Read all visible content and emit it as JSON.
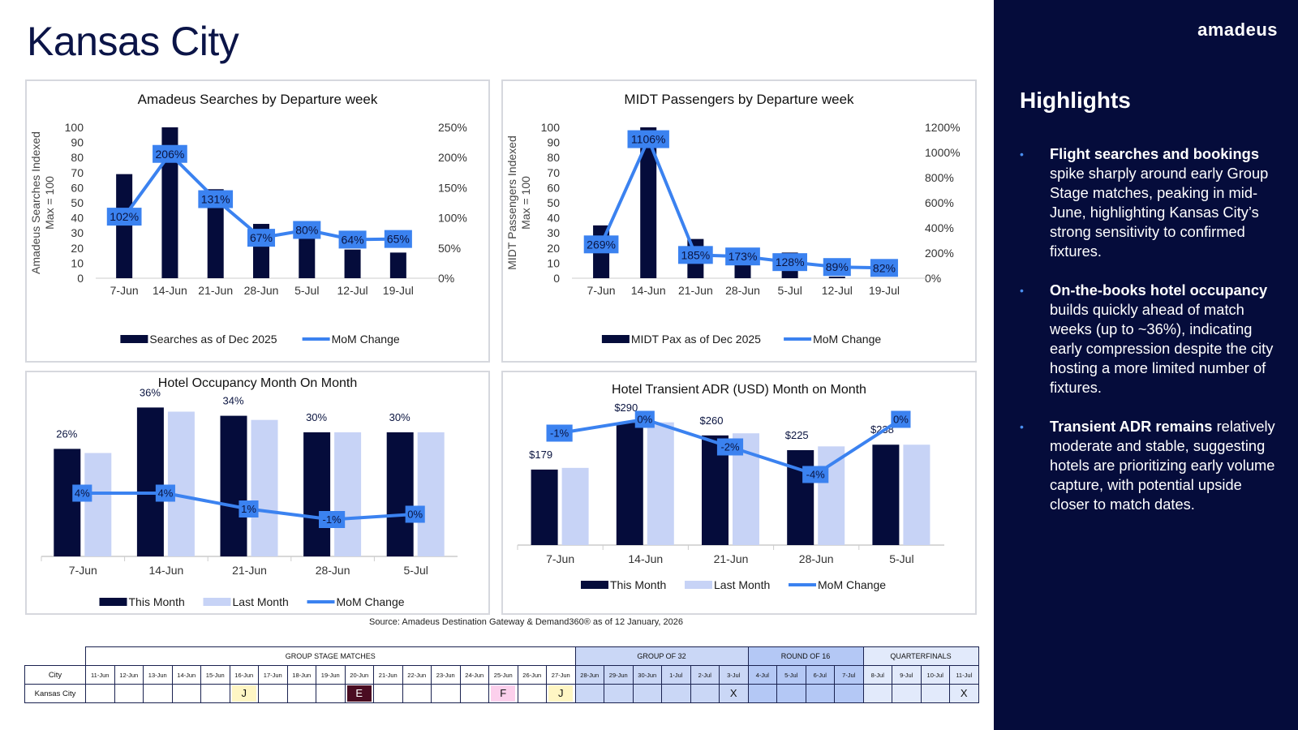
{
  "page": {
    "title": "Kansas City",
    "source": "Source: Amadeus Destination Gateway & Demand360® as of 12 January, 2026"
  },
  "sidebar": {
    "logo": "amadeus",
    "title": "Highlights",
    "items": [
      {
        "bold": "Flight searches and bookings",
        "text": " spike sharply around early Group Stage matches, peaking in mid-June, highlighting Kansas City’s strong sensitivity to confirmed fixtures."
      },
      {
        "bold": "On-the-books hotel occupancy",
        "text": " builds quickly ahead of match weeks (up to ~36%), indicating early compression despite the city hosting a more limited number of fixtures."
      },
      {
        "bold": "Transient ADR remains",
        "text": " relatively moderate and stable, suggesting hotels are prioritizing early volume capture, with potential upside closer to match dates."
      }
    ]
  },
  "colors": {
    "navy": "#050c3b",
    "accent": "#3b82f0",
    "light": "#c7d3f6"
  },
  "chart_data": [
    {
      "type": "bar",
      "title": "Amadeus Searches by Departure week",
      "ylabel": "Amadeus Searches Indexed Max = 100",
      "categories": [
        "7-Jun",
        "14-Jun",
        "21-Jun",
        "28-Jun",
        "5-Jul",
        "12-Jul",
        "19-Jul"
      ],
      "ylim": [
        0,
        100
      ],
      "yticks": [
        "0",
        "10",
        "20",
        "30",
        "40",
        "50",
        "60",
        "70",
        "80",
        "90",
        "100"
      ],
      "y2lim": [
        0,
        250
      ],
      "y2ticks": [
        "0%",
        "50%",
        "100%",
        "150%",
        "200%",
        "250%"
      ],
      "series": [
        {
          "name": "Searches as of Dec 2025",
          "kind": "bar",
          "values": [
            69,
            100,
            59,
            36,
            29,
            19,
            17
          ]
        },
        {
          "name": "MoM Change",
          "kind": "line",
          "axis": "right",
          "values": [
            102,
            206,
            131,
            67,
            80,
            64,
            65
          ],
          "labels": [
            "102%",
            "206%",
            "131%",
            "67%",
            "80%",
            "64%",
            "65%"
          ]
        }
      ]
    },
    {
      "type": "bar",
      "title": "MIDT Passengers by Departure week",
      "ylabel": "MIDT Passengers Indexed Max = 100",
      "categories": [
        "7-Jun",
        "14-Jun",
        "21-Jun",
        "28-Jun",
        "5-Jul",
        "12-Jul",
        "19-Jul"
      ],
      "ylim": [
        0,
        100
      ],
      "yticks": [
        "0",
        "10",
        "20",
        "30",
        "40",
        "50",
        "60",
        "70",
        "80",
        "90",
        "100"
      ],
      "y2lim": [
        0,
        1200
      ],
      "y2ticks": [
        "0%",
        "200%",
        "400%",
        "600%",
        "800%",
        "1000%",
        "1200%"
      ],
      "series": [
        {
          "name": "MIDT Pax as of Dec 2025",
          "kind": "bar",
          "values": [
            35,
            100,
            26,
            15,
            17,
            1,
            0
          ]
        },
        {
          "name": "MoM Change",
          "kind": "line",
          "axis": "right",
          "values": [
            269,
            1106,
            185,
            173,
            128,
            89,
            82
          ],
          "labels": [
            "269%",
            "1106%",
            "185%",
            "173%",
            "128%",
            "89%",
            "82%"
          ]
        }
      ]
    },
    {
      "type": "bar",
      "title": "Hotel Occupancy Month On Month",
      "categories": [
        "7-Jun",
        "14-Jun",
        "21-Jun",
        "28-Jun",
        "5-Jul"
      ],
      "series": [
        {
          "name": "This Month",
          "kind": "bar",
          "values": [
            26,
            36,
            34,
            30,
            30
          ],
          "labels": [
            "26%",
            "36%",
            "34%",
            "30%",
            "30%"
          ]
        },
        {
          "name": "Last Month",
          "kind": "bar",
          "values": [
            25,
            35,
            33,
            30,
            30
          ]
        },
        {
          "name": "MoM Change",
          "kind": "line",
          "values": [
            4,
            4,
            1,
            -1,
            0
          ],
          "labels": [
            "4%",
            "4%",
            "1%",
            "-1%",
            "0%"
          ]
        }
      ]
    },
    {
      "type": "bar",
      "title": "Hotel Transient ADR (USD) Month on Month",
      "categories": [
        "7-Jun",
        "14-Jun",
        "21-Jun",
        "28-Jun",
        "5-Jul"
      ],
      "series": [
        {
          "name": "This Month",
          "kind": "bar",
          "values": [
            179,
            290,
            260,
            225,
            238
          ],
          "labels": [
            "$179",
            "$290",
            "$260",
            "$225",
            "$238"
          ]
        },
        {
          "name": "Last Month",
          "kind": "bar",
          "values": [
            183,
            291,
            265,
            234,
            238
          ]
        },
        {
          "name": "MoM Change",
          "kind": "line",
          "values": [
            -1,
            0,
            -2,
            -4,
            0
          ],
          "labels": [
            "-1%",
            "0%",
            "-2%",
            "-4%",
            "0%"
          ]
        }
      ]
    }
  ],
  "schedule": {
    "phases": [
      {
        "label": "GROUP STAGE MATCHES",
        "span": 17,
        "color": "#ffffff"
      },
      {
        "label": "GROUP OF 32",
        "span": 6,
        "color": "#cad7f6"
      },
      {
        "label": "ROUND OF 16",
        "span": 4,
        "color": "#b4c8f5"
      },
      {
        "label": "QUARTERFINALS",
        "span": 4,
        "color": "#e2eafb"
      }
    ],
    "city_header": "City",
    "dates": [
      "11-Jun",
      "12-Jun",
      "13-Jun",
      "14-Jun",
      "15-Jun",
      "16-Jun",
      "17-Jun",
      "18-Jun",
      "19-Jun",
      "20-Jun",
      "21-Jun",
      "22-Jun",
      "23-Jun",
      "24-Jun",
      "25-Jun",
      "26-Jun",
      "27-Jun",
      "28-Jun",
      "29-Jun",
      "30-Jun",
      "1-Jul",
      "2-Jul",
      "3-Jul",
      "4-Jul",
      "5-Jul",
      "6-Jul",
      "7-Jul",
      "8-Jul",
      "9-Jul",
      "10-Jul",
      "11-Jul"
    ],
    "rows": [
      {
        "city": "Kansas City",
        "cells": [
          "",
          "",
          "",
          "",
          "",
          "J",
          "",
          "",
          "",
          "E",
          "",
          "",
          "",
          "",
          "F",
          "",
          "J",
          "",
          "",
          "",
          "",
          "",
          "X",
          "",
          "",
          "",
          "",
          "",
          "",
          "",
          "X"
        ],
        "cell_colors": [
          "",
          "",
          "",
          "",
          "",
          "#fff6c4",
          "",
          "",
          "",
          "#4a0d22",
          "",
          "",
          "",
          "",
          "#fcd0ec",
          "",
          "#fff6c4",
          "",
          "",
          "",
          "",
          "",
          "",
          "",
          "",
          "",
          "",
          "",
          "",
          "",
          ""
        ]
      }
    ]
  }
}
